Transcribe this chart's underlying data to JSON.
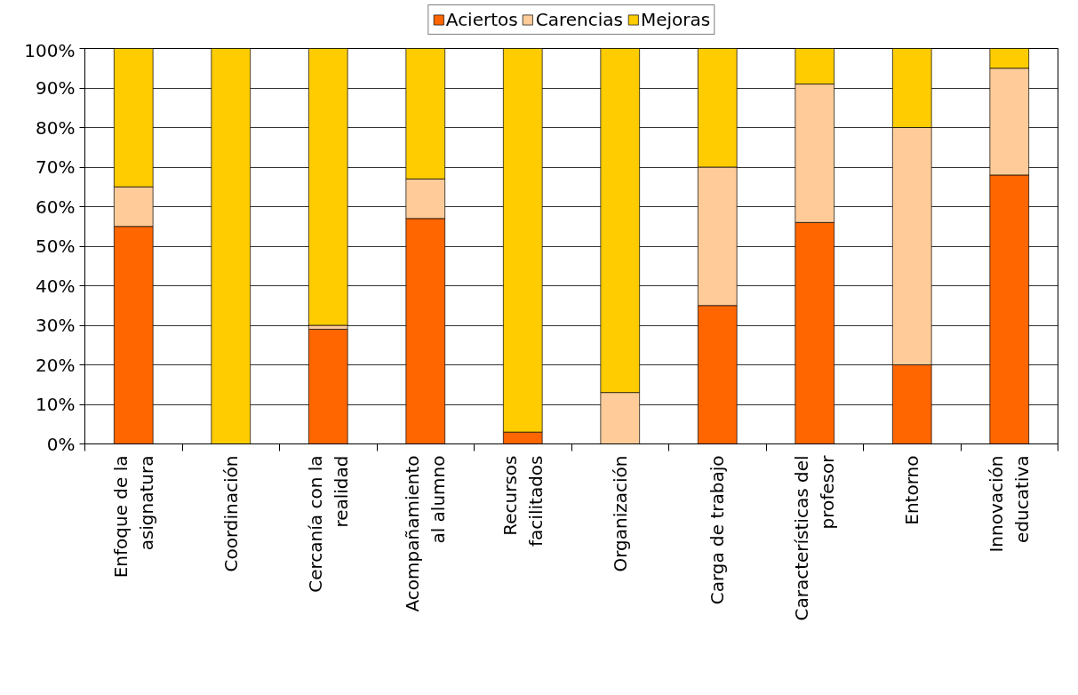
{
  "chart_data": {
    "type": "bar",
    "stacked": true,
    "categories": [
      "Enfoque de la\nasignatura",
      "Coordinación",
      "Cercanía con la\nrealidad",
      "Acompañamiento\nal alumno",
      "Recursos\nfacilitados",
      "Organización",
      "Carga de trabajo",
      "Características del\nprofesor",
      "Entorno",
      "Innovación\neducativa"
    ],
    "series": [
      {
        "name": "Aciertos",
        "color": "#ff6600",
        "values": [
          55,
          0,
          29,
          57,
          3,
          0,
          35,
          56,
          20,
          68
        ]
      },
      {
        "name": "Carencias",
        "color": "#ffcc99",
        "values": [
          10,
          0,
          1,
          10,
          0,
          13,
          35,
          35,
          60,
          27
        ]
      },
      {
        "name": "Mejoras",
        "color": "#ffcc00",
        "values": [
          35,
          100,
          70,
          33,
          97,
          87,
          30,
          9,
          20,
          5
        ]
      }
    ],
    "ylim": [
      0,
      100
    ],
    "yticks": [
      {
        "value": 0,
        "label": "0%"
      },
      {
        "value": 10,
        "label": "10%"
      },
      {
        "value": 20,
        "label": "20%"
      },
      {
        "value": 30,
        "label": "30%"
      },
      {
        "value": 40,
        "label": "40%"
      },
      {
        "value": 50,
        "label": "50%"
      },
      {
        "value": 60,
        "label": "60%"
      },
      {
        "value": 70,
        "label": "70%"
      },
      {
        "value": 80,
        "label": "80%"
      },
      {
        "value": 90,
        "label": "90%"
      },
      {
        "value": 100,
        "label": "100%"
      }
    ],
    "grid": "y",
    "legend": "top"
  }
}
